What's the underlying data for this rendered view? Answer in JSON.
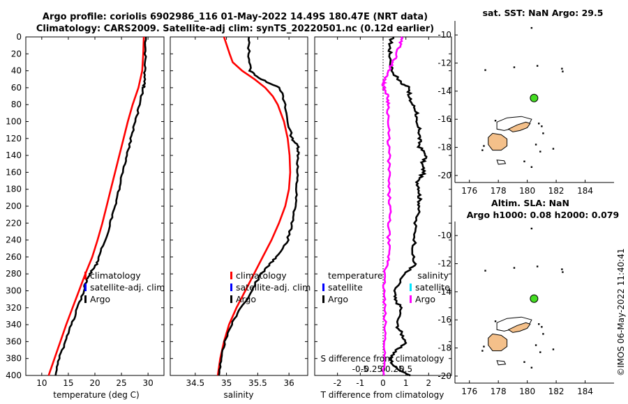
{
  "header": {
    "line1": "Argo profile: coriolis 6902986_116 01-May-2022 14.49S 180.47E (NRT data)",
    "line2": "Climatology: CARS2009. Satellite-adj clim: synTS_20220501.nc (0.12d earlier)"
  },
  "stamp": "©IMOS 06-May-2022 11:40:41",
  "colors": {
    "climatology": "#ff0000",
    "satellite_clim": "#0000ff",
    "argo": "#000000",
    "salinity_diff": "#ff00ff",
    "salinity_sat": "#00e5ff",
    "marker": "#44dd22",
    "land": "#f4c08a"
  },
  "chart_data": [
    {
      "type": "line",
      "id": "temperature",
      "xlabel": "temperature (deg C)",
      "ylabel": "",
      "xlim": [
        7,
        33
      ],
      "ylim": [
        400,
        0
      ],
      "xticks": [
        10,
        15,
        20,
        25,
        30
      ],
      "yticks": [
        0,
        20,
        40,
        60,
        80,
        100,
        120,
        140,
        160,
        180,
        200,
        220,
        240,
        260,
        280,
        300,
        320,
        340,
        360,
        380,
        400
      ],
      "legend": [
        "climatology",
        "satellite-adj. clim",
        "Argo"
      ],
      "series": [
        {
          "name": "climatology",
          "color": "#ff0000",
          "depth": [
            0,
            20,
            40,
            60,
            80,
            100,
            120,
            140,
            160,
            180,
            200,
            220,
            240,
            260,
            280,
            300,
            320,
            340,
            360,
            380,
            400
          ],
          "values": [
            29.2,
            29.1,
            28.9,
            28.2,
            27.1,
            26.2,
            25.4,
            24.6,
            23.8,
            23.0,
            22.2,
            21.4,
            20.5,
            19.5,
            18.2,
            17.0,
            15.8,
            14.6,
            13.5,
            12.4,
            11.3
          ]
        },
        {
          "name": "Argo",
          "color": "#000000",
          "depth": [
            0,
            20,
            40,
            55,
            60,
            80,
            100,
            120,
            140,
            160,
            180,
            200,
            220,
            240,
            260,
            270,
            280,
            290,
            300,
            320,
            340,
            360,
            380,
            400
          ],
          "values": [
            29.6,
            29.5,
            29.4,
            29.4,
            29.1,
            28.4,
            27.6,
            26.8,
            26.0,
            25.3,
            24.5,
            23.8,
            22.9,
            21.9,
            20.8,
            20.2,
            19.0,
            18.3,
            17.9,
            16.8,
            15.6,
            14.5,
            13.3,
            12.6
          ]
        }
      ]
    },
    {
      "type": "line",
      "id": "salinity",
      "xlabel": "salinity",
      "xlim": [
        34.1,
        36.3
      ],
      "ylim": [
        400,
        0
      ],
      "xticks": [
        34.5,
        35,
        35.5,
        36
      ],
      "legend": [
        "climatology",
        "satellite-adj. clim",
        "Argo"
      ],
      "series": [
        {
          "name": "climatology",
          "color": "#ff0000",
          "depth": [
            0,
            20,
            30,
            40,
            50,
            60,
            70,
            80,
            100,
            120,
            140,
            160,
            180,
            200,
            220,
            240,
            260,
            280,
            300,
            320,
            340,
            360,
            380,
            400
          ],
          "values": [
            34.96,
            35.05,
            35.1,
            35.25,
            35.45,
            35.62,
            35.74,
            35.82,
            35.92,
            35.98,
            36.01,
            36.02,
            36.0,
            35.94,
            35.84,
            35.72,
            35.58,
            35.44,
            35.3,
            35.16,
            35.04,
            34.96,
            34.9,
            34.86
          ]
        },
        {
          "name": "Argo",
          "color": "#000000",
          "depth": [
            0,
            20,
            40,
            50,
            60,
            80,
            100,
            120,
            130,
            140,
            160,
            180,
            200,
            220,
            240,
            260,
            270,
            280,
            300,
            320,
            340,
            360,
            380,
            400
          ],
          "values": [
            35.35,
            35.36,
            35.38,
            35.55,
            35.86,
            35.93,
            35.98,
            36.05,
            36.15,
            36.15,
            36.13,
            36.12,
            36.1,
            36.05,
            35.98,
            35.8,
            35.68,
            35.55,
            35.4,
            35.24,
            35.08,
            34.98,
            34.92,
            34.88
          ]
        }
      ]
    },
    {
      "type": "line",
      "id": "differences",
      "xlabel": "T difference from climatology",
      "xlabel_top": "S difference from climatology",
      "xlim": [
        -3,
        3
      ],
      "ylim": [
        400,
        0
      ],
      "xticks": [
        -2,
        -1,
        0,
        1,
        2
      ],
      "xticks_labels": [
        "-2",
        "-1",
        "0",
        "1",
        "2"
      ],
      "s_ticks": [
        -0.5,
        -0.25,
        0,
        0.25,
        0.5
      ],
      "s_ticks_labels": [
        "-0.5",
        "-0.25",
        "0",
        "0.25",
        "0.5"
      ],
      "legend_left": [
        "temperature",
        "satellite",
        "Argo"
      ],
      "legend_right": [
        "salinity",
        "satellite",
        "Argo"
      ],
      "series": [
        {
          "name": "T Argo diff",
          "color": "#000000",
          "depth": [
            0,
            10,
            20,
            40,
            55,
            60,
            70,
            80,
            90,
            100,
            110,
            120,
            130,
            140,
            150,
            160,
            170,
            180,
            190,
            200,
            220,
            240,
            260,
            270,
            280,
            300,
            310,
            320,
            340,
            350,
            360,
            370,
            380,
            390,
            400
          ],
          "values": [
            0.4,
            0.3,
            0.3,
            0.4,
            0.8,
            1.2,
            1.1,
            1.3,
            1.5,
            1.4,
            1.6,
            1.6,
            1.6,
            1.9,
            1.7,
            1.8,
            1.5,
            1.6,
            1.6,
            1.6,
            1.4,
            1.4,
            1.3,
            1.4,
            0.9,
            0.5,
            0.5,
            0.8,
            0.6,
            0.8,
            1.0,
            0.6,
            0.3,
            0.5,
            1.2
          ]
        },
        {
          "name": "S Argo diff",
          "color": "#ff00ff",
          "depth": [
            0,
            10,
            20,
            30,
            40,
            50,
            55,
            60,
            70,
            80,
            100,
            120,
            140,
            160,
            180,
            200,
            220,
            240,
            260,
            270,
            280,
            300,
            320,
            340,
            360,
            380,
            400
          ],
          "values": [
            0.4,
            0.37,
            0.3,
            0.22,
            0.12,
            0.05,
            0.01,
            0.02,
            0.1,
            0.12,
            0.11,
            0.12,
            0.13,
            0.13,
            0.12,
            0.15,
            0.13,
            0.12,
            0.12,
            0.1,
            0.02,
            0.02,
            0.03,
            0.04,
            0.04,
            0.03,
            0.02
          ]
        }
      ]
    },
    {
      "type": "scatter",
      "id": "sst-map",
      "title": "sat. SST: NaN Argo: 29.5",
      "xlim": [
        175,
        186
      ],
      "ylim": [
        -20.5,
        -9
      ],
      "xticks": [
        176,
        178,
        180,
        182,
        184
      ],
      "yticks": [
        -10,
        -12,
        -14,
        -16,
        -18,
        -20
      ],
      "points": [
        {
          "x": 180.47,
          "y": -14.49
        }
      ]
    },
    {
      "type": "scatter",
      "id": "sla-map",
      "title_line1": "Altim. SLA: NaN",
      "title_line2": "Argo h1000: 0.08 h2000: 0.079",
      "xlim": [
        175,
        186
      ],
      "ylim": [
        -20.5,
        -9
      ],
      "xticks": [
        176,
        178,
        180,
        182,
        184
      ],
      "yticks": [
        -10,
        -12,
        -14,
        -16,
        -18,
        -20
      ],
      "points": [
        {
          "x": 180.47,
          "y": -14.49
        }
      ]
    }
  ]
}
